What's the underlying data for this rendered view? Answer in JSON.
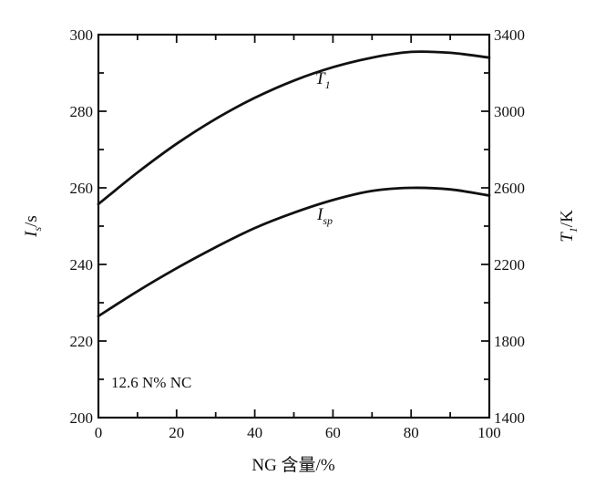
{
  "chart_data": {
    "type": "line",
    "title": "",
    "xlabel": "NG 含量/%",
    "ylabel_left": "I_s/s",
    "ylabel_right": "T_1/K",
    "xlim": [
      0,
      100
    ],
    "ylim_left": [
      200,
      300
    ],
    "ylim_right": [
      1400,
      3400
    ],
    "x_ticks": [
      "0",
      "20",
      "40",
      "60",
      "80",
      "100"
    ],
    "y_left_ticks": [
      "200",
      "220",
      "240",
      "260",
      "280",
      "300"
    ],
    "y_right_ticks": [
      "1400",
      "1800",
      "2200",
      "2600",
      "3000",
      "3400"
    ],
    "grid": false,
    "annotation": "12.6 N% NC",
    "series": [
      {
        "name": "T_1",
        "axis": "right",
        "x": [
          0,
          10,
          20,
          30,
          40,
          50,
          60,
          70,
          80,
          90,
          100
        ],
        "y": [
          2515,
          2680,
          2830,
          2960,
          3070,
          3160,
          3230,
          3280,
          3310,
          3305,
          3280
        ]
      },
      {
        "name": "I_sp",
        "axis": "left",
        "x": [
          0,
          10,
          20,
          30,
          40,
          50,
          60,
          70,
          80,
          90,
          100
        ],
        "y": [
          226.5,
          233,
          239,
          244.5,
          249.5,
          253.5,
          256.8,
          259.2,
          260,
          259.6,
          258
        ]
      }
    ],
    "labels": {
      "t1_main": "T",
      "t1_sub": "1",
      "isp_main": "I",
      "isp_sub": "sp",
      "yleft_main": "I",
      "yleft_sub": "s",
      "yleft_unit": "/s",
      "yright_main": "T",
      "yright_sub": "1",
      "yright_unit": "/K"
    },
    "colors": {
      "line": "#111111",
      "background": "#ffffff"
    }
  }
}
